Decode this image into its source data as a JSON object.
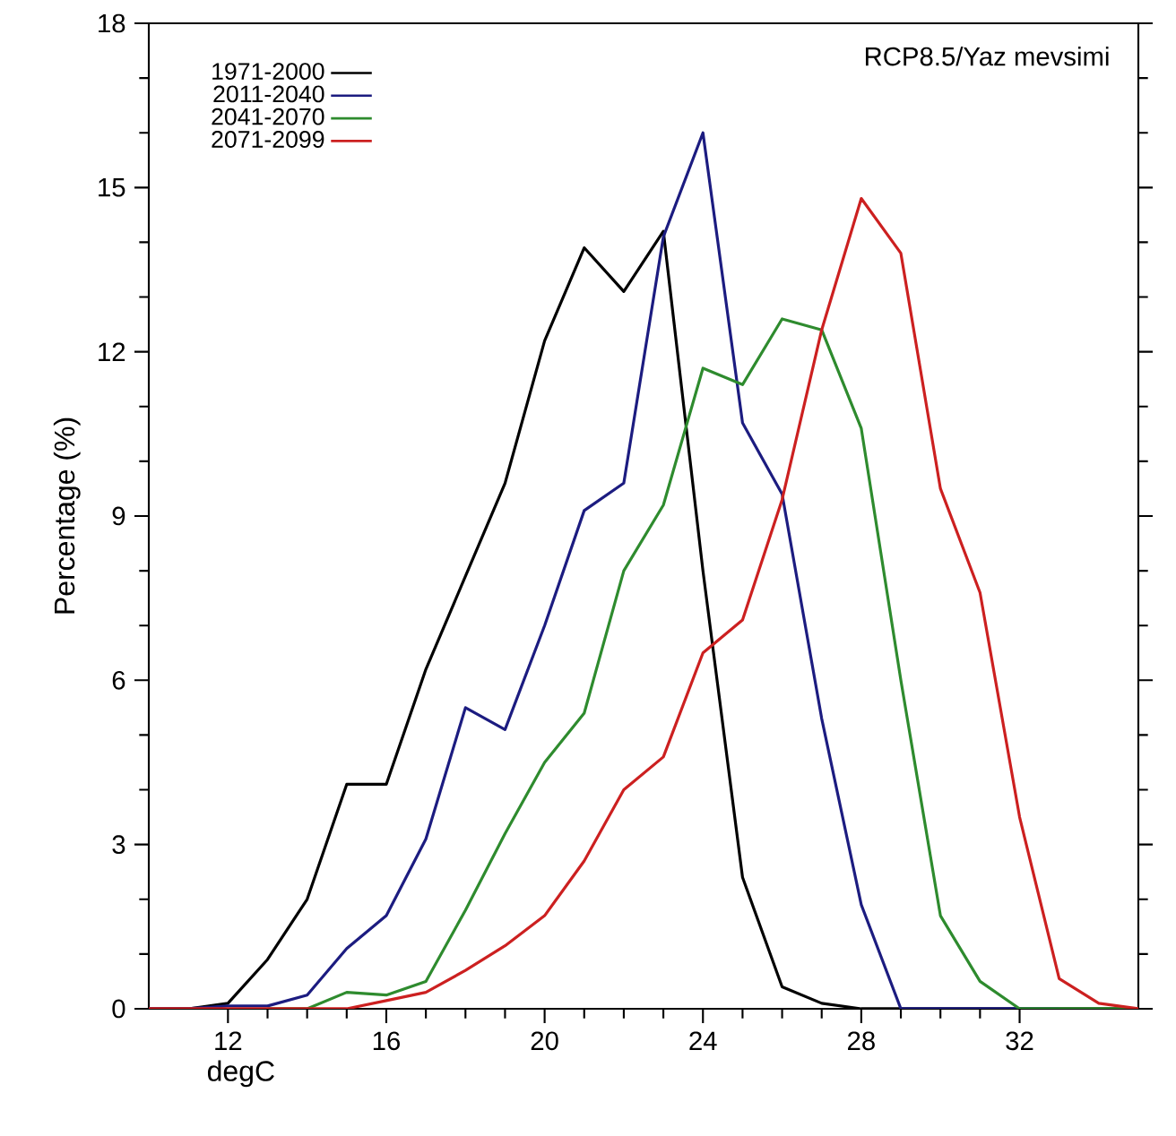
{
  "chart_data": {
    "type": "line",
    "xlabel": "degC",
    "ylabel": "Percentage (%)",
    "annotations": [
      "RCP8.5/Yaz mevsimi"
    ],
    "x": [
      10,
      11,
      12,
      13,
      14,
      15,
      16,
      17,
      18,
      19,
      20,
      21,
      22,
      23,
      24,
      25,
      26,
      27,
      28,
      29,
      30,
      31,
      32,
      33,
      34,
      35
    ],
    "series": [
      {
        "name": "1971-2000",
        "color": "#000000",
        "values": [
          0,
          0,
          0.1,
          0.9,
          2.0,
          4.1,
          4.1,
          6.2,
          7.9,
          9.6,
          12.2,
          13.9,
          13.1,
          14.2,
          8.0,
          2.4,
          0.4,
          0.1,
          0,
          0,
          0,
          0,
          0,
          0,
          0,
          0
        ]
      },
      {
        "name": "2011-2040",
        "color": "#1c1c80",
        "values": [
          0,
          0,
          0.05,
          0.05,
          0.25,
          1.1,
          1.7,
          3.1,
          5.5,
          5.1,
          7.0,
          9.1,
          9.6,
          14.1,
          16.0,
          10.7,
          9.4,
          5.3,
          1.9,
          0,
          0,
          0,
          0,
          0,
          null,
          null
        ]
      },
      {
        "name": "2041-2070",
        "color": "#2e8b2e",
        "values": [
          null,
          null,
          null,
          0,
          0,
          0.3,
          0.25,
          0.5,
          1.8,
          3.2,
          4.5,
          5.4,
          8.0,
          9.2,
          11.7,
          11.4,
          12.6,
          12.4,
          10.6,
          6.0,
          1.7,
          0.5,
          0,
          0,
          0,
          0
        ]
      },
      {
        "name": "2071-2099",
        "color": "#cc2020",
        "values": [
          0,
          0,
          0,
          0,
          0,
          0,
          0.15,
          0.3,
          0.7,
          1.15,
          1.7,
          2.7,
          4.0,
          4.6,
          6.5,
          7.1,
          9.3,
          12.4,
          14.8,
          13.8,
          9.5,
          7.6,
          3.5,
          0.55,
          0.1,
          0
        ]
      }
    ],
    "xlim": [
      10,
      35
    ],
    "ylim": [
      0,
      18
    ],
    "xticks": [
      12,
      16,
      20,
      24,
      28,
      32
    ],
    "yticks": [
      0,
      3,
      6,
      9,
      12,
      15,
      18
    ],
    "legend": "top left",
    "grid": false,
    "marker": "none",
    "line_style": "solid"
  }
}
